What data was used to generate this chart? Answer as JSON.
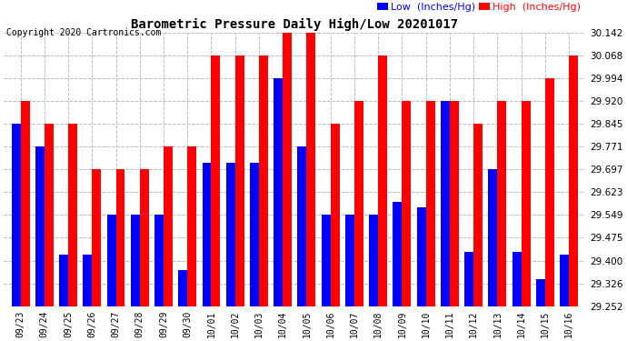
{
  "title": "Barometric Pressure Daily High/Low 20201017",
  "copyright": "Copyright 2020 Cartronics.com",
  "legend_low": "Low  (Inches/Hg)",
  "legend_high": "High  (Inches/Hg)",
  "low_color": "#0000ff",
  "high_color": "#ff0000",
  "background_color": "#ffffff",
  "grid_color": "#bbbbbb",
  "ylim": [
    29.252,
    30.142
  ],
  "yticks": [
    29.252,
    29.326,
    29.4,
    29.475,
    29.549,
    29.623,
    29.697,
    29.771,
    29.845,
    29.92,
    29.994,
    30.068,
    30.142
  ],
  "categories": [
    "09/23",
    "09/24",
    "09/25",
    "09/26",
    "09/27",
    "09/28",
    "09/29",
    "09/30",
    "10/01",
    "10/02",
    "10/03",
    "10/04",
    "10/05",
    "10/06",
    "10/07",
    "10/08",
    "10/09",
    "10/10",
    "10/11",
    "10/12",
    "10/13",
    "10/14",
    "10/15",
    "10/16"
  ],
  "high_values": [
    29.92,
    29.845,
    29.845,
    29.697,
    29.697,
    29.697,
    29.771,
    29.771,
    30.068,
    30.068,
    30.068,
    30.142,
    30.142,
    29.845,
    29.92,
    30.068,
    29.92,
    29.92,
    29.92,
    29.845,
    29.92,
    29.92,
    29.994,
    30.068
  ],
  "low_values": [
    29.845,
    29.771,
    29.42,
    29.42,
    29.549,
    29.549,
    29.549,
    29.37,
    29.72,
    29.72,
    29.72,
    29.994,
    29.771,
    29.549,
    29.549,
    29.549,
    29.59,
    29.575,
    29.92,
    29.43,
    29.697,
    29.43,
    29.34,
    29.42
  ],
  "ymin": 29.252,
  "bar_width": 0.38,
  "figsize": [
    6.9,
    3.75
  ],
  "dpi": 100
}
